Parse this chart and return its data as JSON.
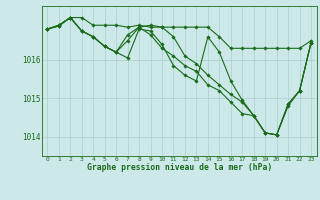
{
  "title": "Graphe pression niveau de la mer (hPa)",
  "xlabel_ticks": [
    0,
    1,
    2,
    3,
    4,
    5,
    6,
    7,
    8,
    9,
    10,
    11,
    12,
    13,
    14,
    15,
    16,
    17,
    18,
    19,
    20,
    21,
    22,
    23
  ],
  "yticks": [
    1014,
    1015,
    1016
  ],
  "ylim": [
    1013.5,
    1017.4
  ],
  "xlim": [
    -0.5,
    23.5
  ],
  "bg_color": "#cce8e8",
  "grid_color": "#aacfcf",
  "line_color": "#1a6b1a",
  "marker": "D",
  "markersize": 1.8,
  "linewidth": 0.8,
  "series": [
    [
      1016.8,
      1016.9,
      1017.1,
      1017.1,
      1016.9,
      1016.9,
      1016.9,
      1016.85,
      1016.9,
      1016.85,
      1016.85,
      1016.85,
      1016.85,
      1016.85,
      1016.85,
      1016.6,
      1016.3,
      1016.3,
      1016.3,
      1016.3,
      1016.3,
      1016.3,
      1016.3,
      1016.5
    ],
    [
      1016.8,
      1016.9,
      1017.1,
      1016.75,
      1016.6,
      1016.35,
      1016.2,
      1016.5,
      1016.85,
      1016.9,
      1016.85,
      1016.6,
      1016.1,
      1015.9,
      1015.6,
      1015.35,
      1015.1,
      1014.9,
      1014.55,
      1014.1,
      1014.05,
      1014.85,
      1015.2,
      1016.45
    ],
    [
      1016.8,
      1016.88,
      1017.1,
      1016.75,
      1016.6,
      1016.35,
      1016.2,
      1016.05,
      1016.8,
      1016.75,
      1016.4,
      1015.85,
      1015.6,
      1015.45,
      1016.6,
      1016.2,
      1015.45,
      1014.95,
      1014.55,
      1014.1,
      1014.05,
      1014.8,
      1015.2,
      1016.45
    ],
    [
      1016.8,
      1016.88,
      1017.1,
      1016.75,
      1016.6,
      1016.35,
      1016.2,
      1016.65,
      1016.85,
      1016.65,
      1016.3,
      1016.1,
      1015.85,
      1015.7,
      1015.35,
      1015.2,
      1014.9,
      1014.6,
      1014.55,
      1014.1,
      1014.05,
      1014.85,
      1015.2,
      1016.45
    ]
  ]
}
